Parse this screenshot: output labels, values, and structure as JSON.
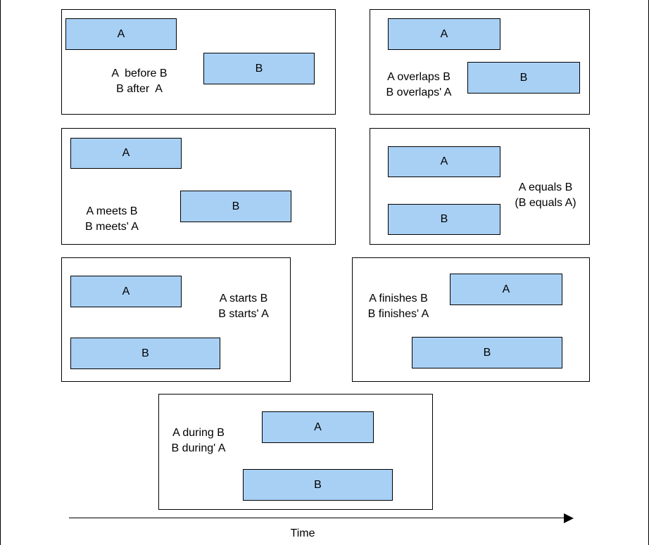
{
  "panels": [
    {
      "id": "before",
      "bar_a": "A",
      "bar_b": "B",
      "line1": "A  before B",
      "line2": "B after  A"
    },
    {
      "id": "overlaps",
      "bar_a": "A",
      "bar_b": "B",
      "line1": "A overlaps B",
      "line2": "B overlaps' A"
    },
    {
      "id": "meets",
      "bar_a": "A",
      "bar_b": "B",
      "line1": "A meets B",
      "line2": "B meets' A"
    },
    {
      "id": "equals",
      "bar_a": "A",
      "bar_b": "B",
      "line1": "A equals B",
      "line2": "(B equals A)"
    },
    {
      "id": "starts",
      "bar_a": "A",
      "bar_b": "B",
      "line1": "A starts B",
      "line2": "B starts' A"
    },
    {
      "id": "finishes",
      "bar_a": "A",
      "bar_b": "B",
      "line1": "A finishes B",
      "line2": "B finishes' A"
    },
    {
      "id": "during",
      "bar_a": "A",
      "bar_b": "B",
      "line1": "A during B",
      "line2": "B during' A"
    }
  ],
  "axis": {
    "label": "Time"
  },
  "colors": {
    "bar_fill": "#a8d0f5",
    "stroke": "#000000",
    "background": "#ffffff"
  }
}
